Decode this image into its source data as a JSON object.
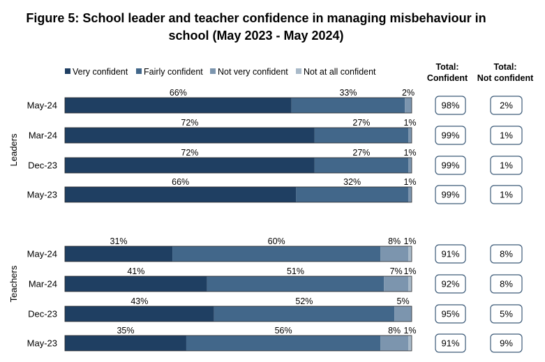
{
  "chart_data": {
    "type": "bar",
    "orientation": "horizontal",
    "stacked": true,
    "title_line1": "Figure 5: School leader and teacher confidence in managing misbehaviour in",
    "title_line2": "school (May 2023 - May 2024)",
    "legend": {
      "placement": "top",
      "entries": [
        "Very confident",
        "Fairly confident",
        "Not very confident",
        "Not at all confident"
      ]
    },
    "colors": [
      "#1f3f62",
      "#42678a",
      "#7c95ae",
      "#a9bac9"
    ],
    "totals_headers": {
      "confident_line1": "Total:",
      "confident_line2": "Confident",
      "not_confident_line1": "Total:",
      "not_confident_line2": "Not confident"
    },
    "groups": [
      {
        "name": "Leaders",
        "rows": [
          {
            "label": "May-24",
            "values": [
              66,
              33,
              2,
              0
            ],
            "labels": [
              "66%",
              "33%",
              "2%",
              ""
            ],
            "total_confident": "98%",
            "total_not_confident": "2%"
          },
          {
            "label": "Mar-24",
            "values": [
              72,
              27,
              1,
              0
            ],
            "labels": [
              "72%",
              "27%",
              "1%",
              ""
            ],
            "total_confident": "99%",
            "total_not_confident": "1%"
          },
          {
            "label": "Dec-23",
            "values": [
              72,
              27,
              1,
              0
            ],
            "labels": [
              "72%",
              "27%",
              "1%",
              ""
            ],
            "total_confident": "99%",
            "total_not_confident": "1%"
          },
          {
            "label": "May-23",
            "values": [
              66,
              32,
              1,
              0
            ],
            "labels": [
              "66%",
              "32%",
              "1%",
              ""
            ],
            "total_confident": "99%",
            "total_not_confident": "1%"
          }
        ]
      },
      {
        "name": "Teachers",
        "rows": [
          {
            "label": "May-24",
            "values": [
              31,
              60,
              8,
              1
            ],
            "labels": [
              "31%",
              "60%",
              "8%",
              "1%"
            ],
            "total_confident": "91%",
            "total_not_confident": "8%"
          },
          {
            "label": "Mar-24",
            "values": [
              41,
              51,
              7,
              1
            ],
            "labels": [
              "41%",
              "51%",
              "7%",
              "1%"
            ],
            "total_confident": "92%",
            "total_not_confident": "8%"
          },
          {
            "label": "Dec-23",
            "values": [
              43,
              52,
              5,
              0
            ],
            "labels": [
              "43%",
              "52%",
              "5%",
              ""
            ],
            "total_confident": "95%",
            "total_not_confident": "5%"
          },
          {
            "label": "May-23",
            "values": [
              35,
              56,
              8,
              1
            ],
            "labels": [
              "35%",
              "56%",
              "8%",
              "1%"
            ],
            "total_confident": "91%",
            "total_not_confident": "9%"
          }
        ]
      }
    ],
    "xlim": [
      0,
      100
    ]
  }
}
